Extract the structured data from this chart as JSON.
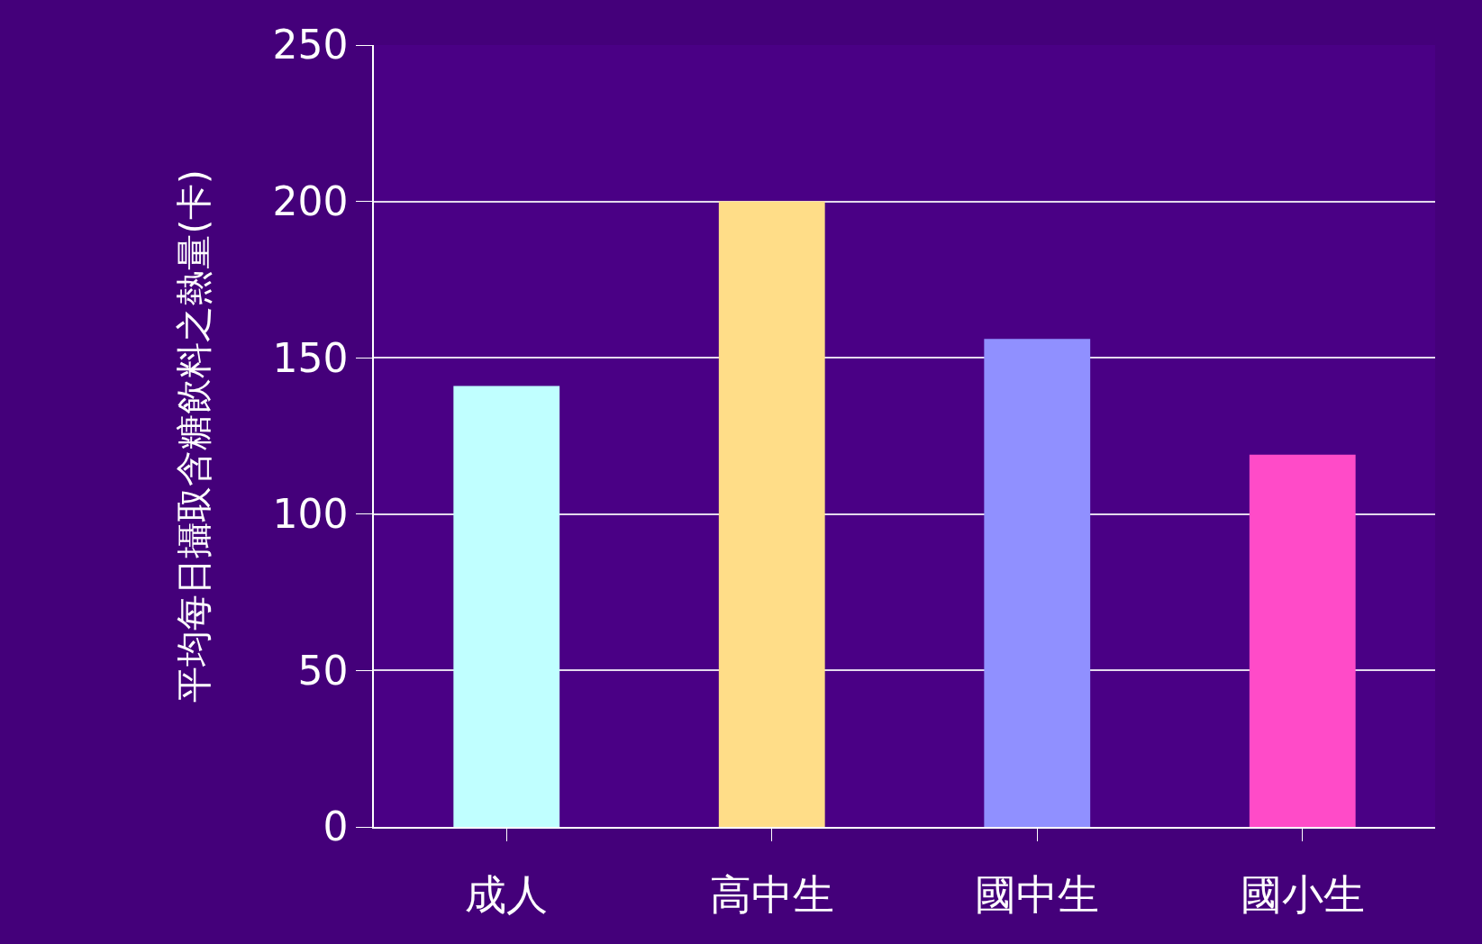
{
  "chart_data": {
    "type": "bar",
    "ylabel": "平均每日攝取含糖飲料之熱量(卡)",
    "categories": [
      "成人",
      "高中生",
      "國中生",
      "國小生"
    ],
    "values": [
      141,
      200,
      156,
      119
    ],
    "colors": [
      "#c0ffff",
      "#ffdd88",
      "#9090ff",
      "#ff4bc8"
    ],
    "ylim": [
      0,
      250
    ],
    "yticks": [
      0,
      50,
      100,
      150,
      200,
      250
    ],
    "grid": "y",
    "legend": false
  }
}
